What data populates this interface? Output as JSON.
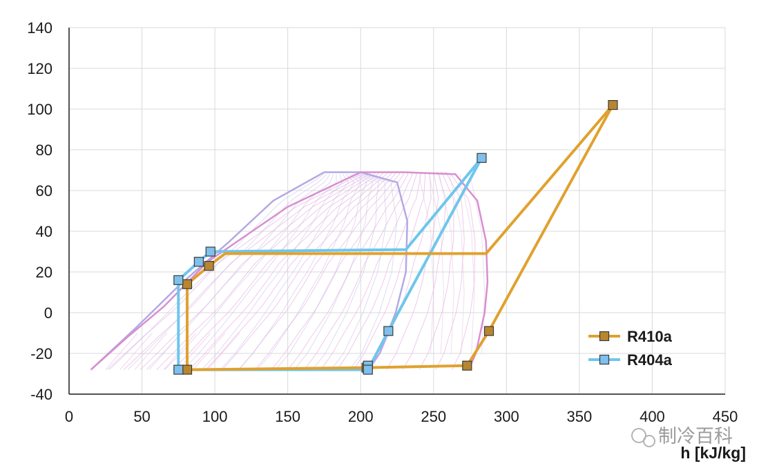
{
  "chart_data": {
    "type": "line",
    "title": "",
    "xlabel": "h [kJ/kg]",
    "ylabel": "",
    "xlim": [
      0,
      450
    ],
    "ylim": [
      -40,
      140
    ],
    "x_ticks": [
      "0",
      "50",
      "100",
      "150",
      "200",
      "250",
      "300",
      "350",
      "400",
      "450"
    ],
    "y_ticks": [
      "-40",
      "-20",
      "0",
      "20",
      "40",
      "60",
      "80",
      "100",
      "120",
      "140"
    ],
    "grid": true,
    "legend_position": "bottom-right",
    "series": [
      {
        "name": "R410a",
        "color": "#E0A12E",
        "marker_color": "#B8862F",
        "points": [
          [
            81,
            -28
          ],
          [
            204,
            -27
          ],
          [
            273,
            -26
          ],
          [
            288,
            -9
          ],
          [
            373,
            102
          ],
          [
            286,
            29
          ],
          [
            107,
            29
          ],
          [
            96,
            23
          ],
          [
            81,
            14
          ],
          [
            81,
            -28
          ]
        ],
        "markers": [
          [
            81,
            -28
          ],
          [
            204,
            -27
          ],
          [
            273,
            -26
          ],
          [
            288,
            -9
          ],
          [
            373,
            102
          ],
          [
            96,
            23
          ],
          [
            81,
            14
          ]
        ]
      },
      {
        "name": "R404a",
        "color": "#6EC6EC",
        "marker_color": "#7FC0EC",
        "points": [
          [
            75,
            -28
          ],
          [
            205,
            -28
          ],
          [
            219,
            -9
          ],
          [
            283,
            76
          ],
          [
            231,
            31
          ],
          [
            97,
            30
          ],
          [
            89,
            25
          ],
          [
            75,
            16
          ],
          [
            75,
            -28
          ]
        ],
        "markers": [
          [
            75,
            -28
          ],
          [
            205,
            -26
          ],
          [
            205,
            -28
          ],
          [
            219,
            -9
          ],
          [
            283,
            76
          ],
          [
            97,
            30
          ],
          [
            89,
            25
          ],
          [
            75,
            16
          ]
        ]
      }
    ],
    "background_curves": {
      "R410a_dome": {
        "color": "#D78FD0",
        "liquid": [
          [
            15,
            -28
          ],
          [
            40,
            -12
          ],
          [
            65,
            3
          ],
          [
            95,
            25
          ],
          [
            150,
            52
          ],
          [
            200,
            69
          ],
          [
            230,
            69
          ]
        ],
        "vapor": [
          [
            230,
            69
          ],
          [
            265,
            68
          ],
          [
            280,
            55
          ],
          [
            286,
            35
          ],
          [
            287,
            15
          ],
          [
            285,
            0
          ],
          [
            279,
            -20
          ],
          [
            274,
            -28
          ]
        ]
      },
      "R404a_dome": {
        "color": "#B4A8E4",
        "liquid": [
          [
            15,
            -28
          ],
          [
            45,
            -8
          ],
          [
            75,
            13
          ],
          [
            110,
            35
          ],
          [
            140,
            55
          ],
          [
            175,
            69
          ]
        ],
        "vapor": [
          [
            175,
            69
          ],
          [
            200,
            69
          ],
          [
            225,
            64
          ],
          [
            232,
            45
          ],
          [
            231,
            20
          ],
          [
            224,
            0
          ],
          [
            213,
            -20
          ],
          [
            205,
            -28
          ]
        ]
      },
      "line_color": "#E9B7E3"
    },
    "watermark": "制冷百科"
  }
}
